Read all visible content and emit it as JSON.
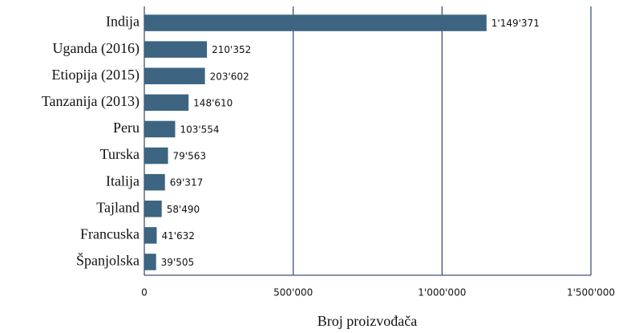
{
  "chart_data": {
    "type": "barh",
    "categories": [
      "Indija",
      "Uganda (2016)",
      "Etiopija (2015)",
      "Tanzanija (2013)",
      "Peru",
      "Turska",
      "Italija",
      "Tajland",
      "Francuska",
      "Španjolska"
    ],
    "values": [
      1149371,
      210352,
      203602,
      148610,
      103554,
      79563,
      69317,
      58490,
      41632,
      39505
    ],
    "value_labels": [
      "1'149'371",
      "210'352",
      "203'602",
      "148'610",
      "103'554",
      "79'563",
      "69'317",
      "58'490",
      "41'632",
      "39'505"
    ],
    "color": "#3d6480",
    "xlim": [
      0,
      1500000
    ],
    "xticks": [
      0,
      {
        "value": 500000,
        "label": "500'000"
      },
      {
        "value": 1000000,
        "label": "1'000'000"
      },
      {
        "value": 1500000,
        "label": "1'500'000"
      }
    ],
    "xlabel": "Broj proizvođača",
    "grid": true
  }
}
